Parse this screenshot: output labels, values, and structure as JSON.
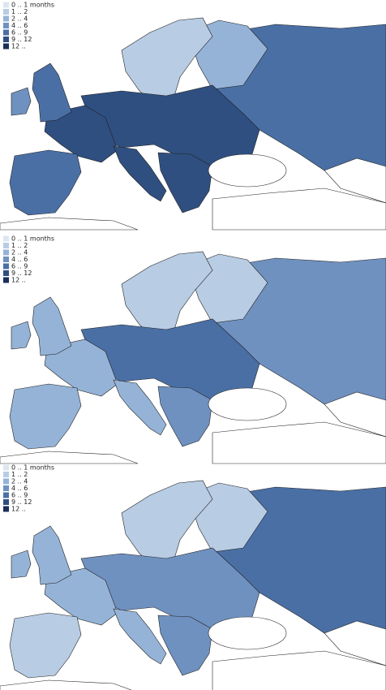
{
  "maps": [
    {
      "legend": [
        {
          "label": "0 .. 1 months",
          "color": "#dce6f2"
        },
        {
          "label": "1 .. 2",
          "color": "#b8cce4"
        },
        {
          "label": "2 .. 4",
          "color": "#95b3d7"
        },
        {
          "label": "4 .. 6",
          "color": "#6f91c0"
        },
        {
          "label": "6 .. 9",
          "color": "#4a6fa5"
        },
        {
          "label": "9 .. 12",
          "color": "#2f4f80"
        },
        {
          "label": "12 ..",
          "color": "#1a2f5a"
        }
      ]
    },
    {
      "legend": [
        {
          "label": "0 .. 1 months",
          "color": "#dce6f2"
        },
        {
          "label": "1 .. 2",
          "color": "#b8cce4"
        },
        {
          "label": "2 .. 4",
          "color": "#95b3d7"
        },
        {
          "label": "4 .. 6",
          "color": "#6f91c0"
        },
        {
          "label": "6 .. 9",
          "color": "#4a6fa5"
        },
        {
          "label": "9 .. 12",
          "color": "#2f4f80"
        },
        {
          "label": "12 ..",
          "color": "#1a2f5a"
        }
      ]
    },
    {
      "legend": [
        {
          "label": "0 .. 1 months",
          "color": "#dce6f2"
        },
        {
          "label": "1 .. 2",
          "color": "#b8cce4"
        },
        {
          "label": "2 .. 4",
          "color": "#95b3d7"
        },
        {
          "label": "4 .. 6",
          "color": "#6f91c0"
        },
        {
          "label": "6 .. 9",
          "color": "#4a6fa5"
        },
        {
          "label": "9 .. 12",
          "color": "#2f4f80"
        },
        {
          "label": "12 ..",
          "color": "#1a2f5a"
        }
      ]
    }
  ]
}
